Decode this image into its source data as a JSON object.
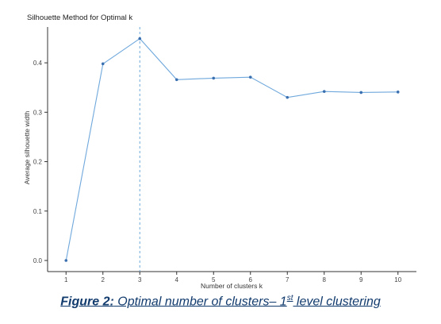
{
  "chart_data": {
    "type": "line",
    "title": "Silhouette Method for Optimal k",
    "xlabel": "Number of clusters k",
    "ylabel": "Average silhouette width",
    "x": [
      1,
      2,
      3,
      4,
      5,
      6,
      7,
      8,
      9,
      10
    ],
    "values": [
      0.0,
      0.398,
      0.449,
      0.366,
      0.369,
      0.371,
      0.33,
      0.342,
      0.34,
      0.341
    ],
    "xticks": [
      "1",
      "2",
      "3",
      "4",
      "5",
      "6",
      "7",
      "8",
      "9",
      "10"
    ],
    "yticks": [
      "0.0",
      "0.1",
      "0.2",
      "0.3",
      "0.4"
    ],
    "ytick_values": [
      0.0,
      0.1,
      0.2,
      0.3,
      0.4
    ],
    "xlim": [
      0.5,
      10.5
    ],
    "ylim": [
      -0.0225,
      0.4725
    ],
    "optimal_k": 3,
    "grid": false,
    "line_color": "#6fa8dc",
    "point_color": "#3a6fb0",
    "vline_color": "#6fa8dc"
  },
  "caption": {
    "label": "Figure 2:",
    "text_before_sup": " Optimal number of clusters– 1",
    "sup": "st",
    "text_after_sup": " level clustering",
    "color": "#123b6e"
  }
}
